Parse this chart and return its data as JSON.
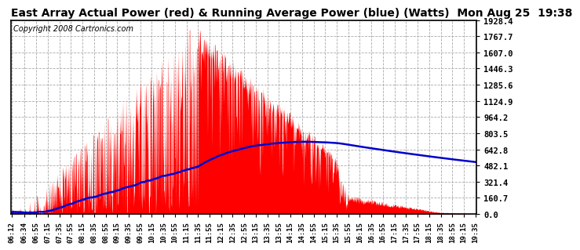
{
  "title": "East Array Actual Power (red) & Running Average Power (blue) (Watts)  Mon Aug 25  19:38",
  "copyright": "Copyright 2008 Cartronics.com",
  "ylabel_values": [
    0.0,
    160.7,
    321.4,
    482.1,
    642.8,
    803.5,
    964.2,
    1124.9,
    1285.6,
    1446.3,
    1607.0,
    1767.7,
    1928.4
  ],
  "ymax": 1928.4,
  "ymin": 0.0,
  "background_color": "#ffffff",
  "plot_bg_color": "#ffffff",
  "grid_color": "#aaaaaa",
  "bar_color": "#ff0000",
  "avg_color": "#0000cc",
  "title_fontsize": 10,
  "copyright_fontsize": 7,
  "x_tick_labels": [
    "06:12",
    "06:34",
    "06:55",
    "07:15",
    "07:35",
    "07:55",
    "08:15",
    "08:35",
    "08:55",
    "09:15",
    "09:35",
    "09:55",
    "10:15",
    "10:35",
    "10:55",
    "11:15",
    "11:35",
    "11:55",
    "12:15",
    "12:35",
    "12:55",
    "13:15",
    "13:35",
    "13:55",
    "14:15",
    "14:35",
    "14:55",
    "15:15",
    "15:35",
    "15:55",
    "16:15",
    "16:35",
    "16:55",
    "17:15",
    "17:35",
    "17:55",
    "18:15",
    "18:35",
    "18:55",
    "19:15",
    "19:35"
  ]
}
